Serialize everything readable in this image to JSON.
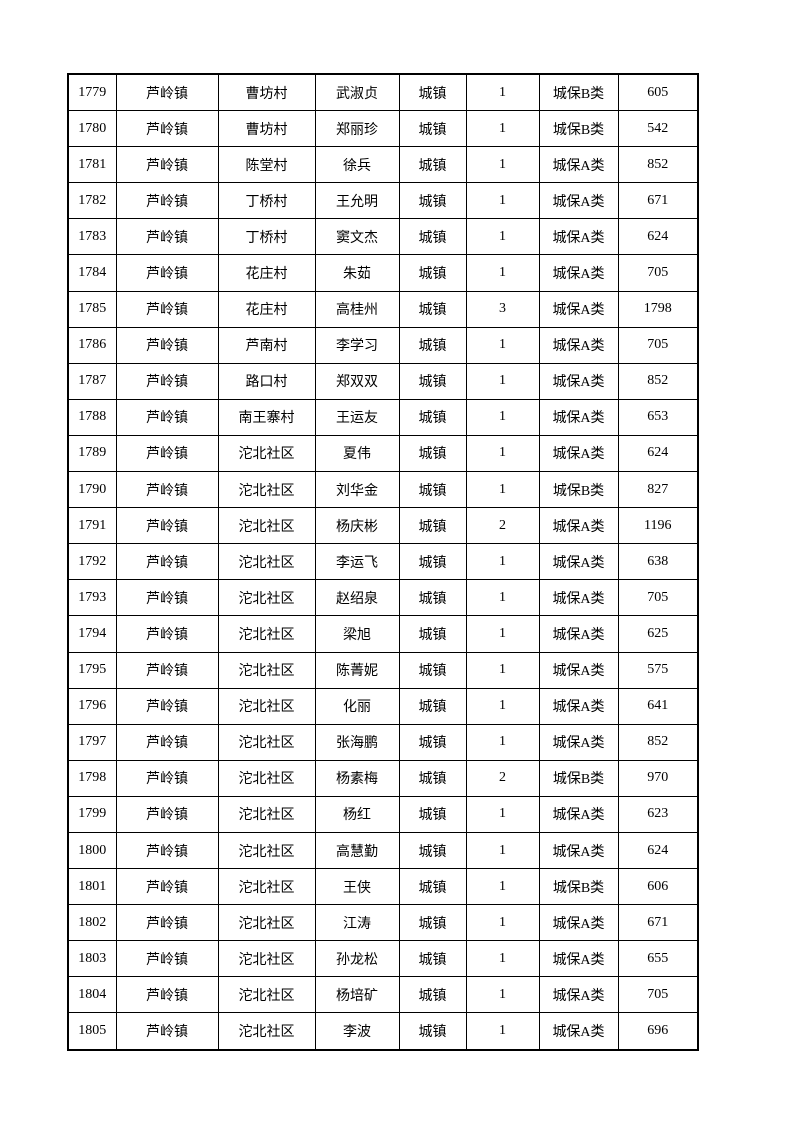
{
  "rows": [
    [
      "1779",
      "芦岭镇",
      "曹坊村",
      "武淑贞",
      "城镇",
      "1",
      "城保B类",
      "605"
    ],
    [
      "1780",
      "芦岭镇",
      "曹坊村",
      "郑丽珍",
      "城镇",
      "1",
      "城保B类",
      "542"
    ],
    [
      "1781",
      "芦岭镇",
      "陈堂村",
      "徐兵",
      "城镇",
      "1",
      "城保A类",
      "852"
    ],
    [
      "1782",
      "芦岭镇",
      "丁桥村",
      "王允明",
      "城镇",
      "1",
      "城保A类",
      "671"
    ],
    [
      "1783",
      "芦岭镇",
      "丁桥村",
      "窦文杰",
      "城镇",
      "1",
      "城保A类",
      "624"
    ],
    [
      "1784",
      "芦岭镇",
      "花庄村",
      "朱茹",
      "城镇",
      "1",
      "城保A类",
      "705"
    ],
    [
      "1785",
      "芦岭镇",
      "花庄村",
      "高桂州",
      "城镇",
      "3",
      "城保A类",
      "1798"
    ],
    [
      "1786",
      "芦岭镇",
      "芦南村",
      "李学习",
      "城镇",
      "1",
      "城保A类",
      "705"
    ],
    [
      "1787",
      "芦岭镇",
      "路口村",
      "郑双双",
      "城镇",
      "1",
      "城保A类",
      "852"
    ],
    [
      "1788",
      "芦岭镇",
      "南王寨村",
      "王运友",
      "城镇",
      "1",
      "城保A类",
      "653"
    ],
    [
      "1789",
      "芦岭镇",
      "沱北社区",
      "夏伟",
      "城镇",
      "1",
      "城保A类",
      "624"
    ],
    [
      "1790",
      "芦岭镇",
      "沱北社区",
      "刘华金",
      "城镇",
      "1",
      "城保B类",
      "827"
    ],
    [
      "1791",
      "芦岭镇",
      "沱北社区",
      "杨庆彬",
      "城镇",
      "2",
      "城保A类",
      "1196"
    ],
    [
      "1792",
      "芦岭镇",
      "沱北社区",
      "李运飞",
      "城镇",
      "1",
      "城保A类",
      "638"
    ],
    [
      "1793",
      "芦岭镇",
      "沱北社区",
      "赵绍泉",
      "城镇",
      "1",
      "城保A类",
      "705"
    ],
    [
      "1794",
      "芦岭镇",
      "沱北社区",
      "梁旭",
      "城镇",
      "1",
      "城保A类",
      "625"
    ],
    [
      "1795",
      "芦岭镇",
      "沱北社区",
      "陈菁妮",
      "城镇",
      "1",
      "城保A类",
      "575"
    ],
    [
      "1796",
      "芦岭镇",
      "沱北社区",
      "化丽",
      "城镇",
      "1",
      "城保A类",
      "641"
    ],
    [
      "1797",
      "芦岭镇",
      "沱北社区",
      "张海鹏",
      "城镇",
      "1",
      "城保A类",
      "852"
    ],
    [
      "1798",
      "芦岭镇",
      "沱北社区",
      "杨素梅",
      "城镇",
      "2",
      "城保B类",
      "970"
    ],
    [
      "1799",
      "芦岭镇",
      "沱北社区",
      "杨红",
      "城镇",
      "1",
      "城保A类",
      "623"
    ],
    [
      "1800",
      "芦岭镇",
      "沱北社区",
      "高慧勤",
      "城镇",
      "1",
      "城保A类",
      "624"
    ],
    [
      "1801",
      "芦岭镇",
      "沱北社区",
      "王侠",
      "城镇",
      "1",
      "城保B类",
      "606"
    ],
    [
      "1802",
      "芦岭镇",
      "沱北社区",
      "江涛",
      "城镇",
      "1",
      "城保A类",
      "671"
    ],
    [
      "1803",
      "芦岭镇",
      "沱北社区",
      "孙龙松",
      "城镇",
      "1",
      "城保A类",
      "655"
    ],
    [
      "1804",
      "芦岭镇",
      "沱北社区",
      "杨培矿",
      "城镇",
      "1",
      "城保A类",
      "705"
    ],
    [
      "1805",
      "芦岭镇",
      "沱北社区",
      "李波",
      "城镇",
      "1",
      "城保A类",
      "696"
    ]
  ]
}
